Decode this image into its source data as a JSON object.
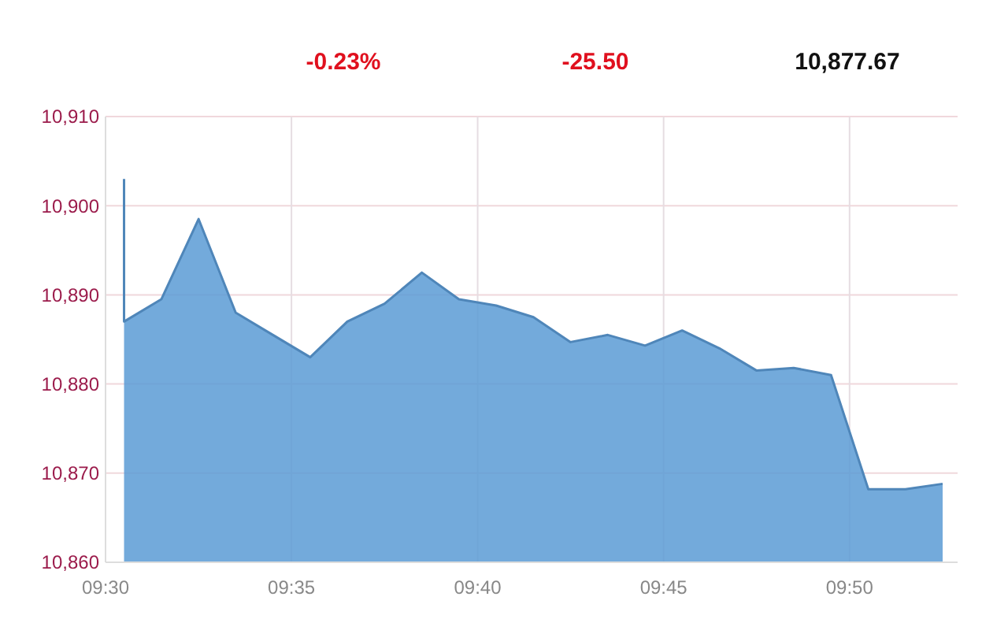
{
  "chart_data": {
    "type": "area",
    "annotations": [
      "-0.23%",
      "-25.50",
      "10,877.67"
    ],
    "x": [
      9.5083,
      9.5083,
      9.525,
      9.5417,
      9.5583,
      9.575,
      9.5917,
      9.6083,
      9.625,
      9.6417,
      9.6583,
      9.675,
      9.6917,
      9.7083,
      9.725,
      9.7417,
      9.7583,
      9.775,
      9.7917,
      9.8083,
      9.825,
      9.8417,
      9.8583,
      9.875
    ],
    "series": [
      {
        "color": "#5b9bd5",
        "values": [
          10903,
          10887,
          10889.5,
          10898.5,
          10888,
          10885.5,
          10883,
          10887,
          10889,
          10892.5,
          10889.5,
          10888.8,
          10887.5,
          10884.7,
          10885.5,
          10884.3,
          10886,
          10884,
          10881.5,
          10881.8,
          10881,
          10868.2,
          10868.2,
          10868.8
        ]
      }
    ],
    "xlim": [
      9.5,
      9.8817
    ],
    "xticks": [
      {
        "value": 9.5,
        "label": "09:30"
      },
      {
        "value": 9.5833,
        "label": "09:35"
      },
      {
        "value": 9.6667,
        "label": "09:40"
      },
      {
        "value": 9.75,
        "label": "09:45"
      },
      {
        "value": 9.8333,
        "label": "09:50"
      }
    ],
    "ylim": [
      10860,
      10910
    ],
    "yticks": [
      {
        "value": 10860,
        "label": "10,860"
      },
      {
        "value": 10870,
        "label": "10,870"
      },
      {
        "value": 10880,
        "label": "10,880"
      },
      {
        "value": 10890,
        "label": "10,890"
      },
      {
        "value": 10900,
        "label": "10,900"
      },
      {
        "value": 10910,
        "label": "10,910"
      }
    ],
    "grid": true
  }
}
